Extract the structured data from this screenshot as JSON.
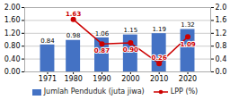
{
  "chart_data": {
    "type": "bar",
    "x": [
      1971,
      1980,
      1990,
      2000,
      2010,
      2020
    ],
    "xlim": [
      1963,
      2028
    ],
    "xticks": [
      1971,
      1980,
      1990,
      2000,
      2010,
      2020
    ],
    "ylim": [
      0,
      2
    ],
    "yticks": [
      {
        "value": 0,
        "label": "0.00"
      },
      {
        "value": 0.4,
        "label": "0.40"
      },
      {
        "value": 0.8,
        "label": "0.80"
      },
      {
        "value": 1.2,
        "label": "1.20"
      },
      {
        "value": 1.6,
        "label": "1.60"
      },
      {
        "value": 2,
        "label": "2.00"
      }
    ],
    "y2lim": [
      0,
      2
    ],
    "y2ticks": [
      {
        "value": 0,
        "label": "0.0"
      },
      0.4,
      0.8,
      1.2,
      1.6,
      {
        "value": 2,
        "label": "2.0"
      }
    ],
    "grid": true,
    "data_labels": true,
    "legend": "bottom",
    "series": [
      {
        "name": "Jumlah Penduduk (juta jiwa)",
        "type": "bar",
        "color": "#4472C4",
        "values": [
          0.84,
          0.98,
          1.06,
          1.15,
          1.19,
          1.32
        ]
      },
      {
        "name": "LPP (%)",
        "type": "line",
        "axis": "y2",
        "color": "#CC0000",
        "marker": "circle",
        "values": [
          null,
          1.63,
          0.87,
          0.9,
          0.26,
          1.09
        ],
        "value_labels": [
          null,
          "1.63",
          "0.87",
          "0.90",
          "0.26",
          "1.09"
        ]
      }
    ]
  }
}
